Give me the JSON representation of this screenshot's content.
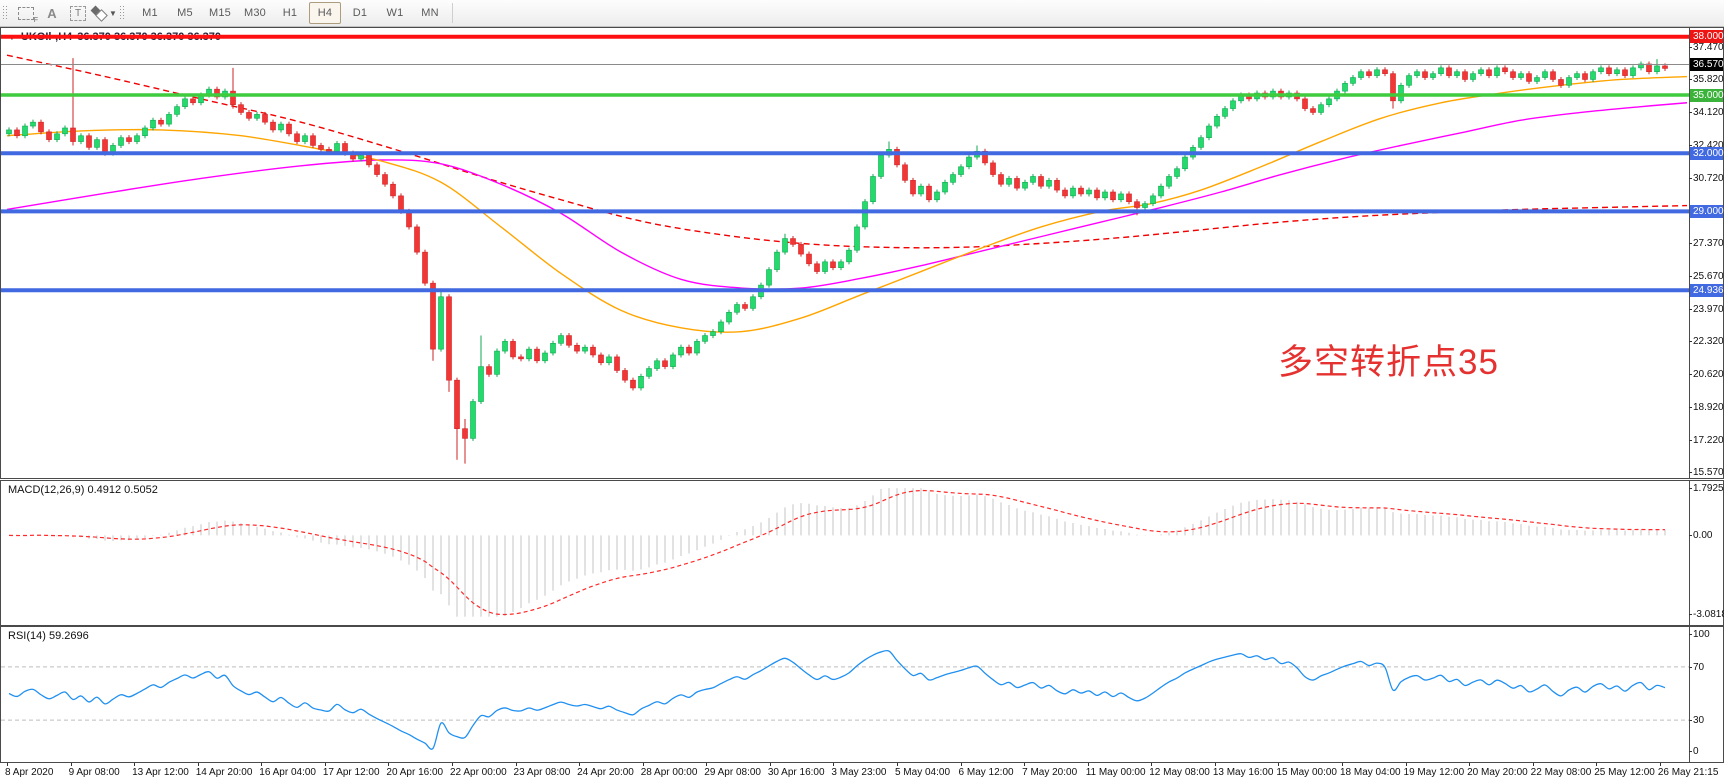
{
  "toolbar": {
    "timeframes": [
      "M1",
      "M5",
      "M15",
      "M30",
      "H1",
      "H4",
      "D1",
      "W1",
      "MN"
    ],
    "active_timeframe": "H4"
  },
  "chart": {
    "title": {
      "symbol_period": "UKOIl-,H4",
      "ohlc": "36.370 36.370 36.370 36.370"
    },
    "annotation": {
      "text": "多空转折点35",
      "color": "#e5312f"
    },
    "price_axis": {
      "ticks": [
        "37.470",
        "35.820",
        "34.120",
        "32.420",
        "30.720",
        "27.370",
        "25.670",
        "23.970",
        "22.320",
        "20.620",
        "18.920",
        "17.220",
        "15.570"
      ],
      "tick_values": [
        37.47,
        35.82,
        34.12,
        32.42,
        30.72,
        27.37,
        25.67,
        23.97,
        22.32,
        20.62,
        18.92,
        17.22,
        15.57
      ],
      "badges": [
        {
          "label": "38.000",
          "price": 38.0,
          "bg": "#ee1414"
        },
        {
          "label": "36.570",
          "price": 36.57,
          "bg": "#000000"
        },
        {
          "label": "35.000",
          "price": 35.0,
          "bg": "#3bb33b"
        },
        {
          "label": "32.000",
          "price": 32.0,
          "bg": "#4169e1"
        },
        {
          "label": "29.000",
          "price": 29.0,
          "bg": "#4169e1"
        },
        {
          "label": "24.936",
          "price": 24.936,
          "bg": "#4169e1"
        }
      ]
    },
    "levels": [
      {
        "price": 35.0,
        "color": "#3ecc3e",
        "w": 3.5
      },
      {
        "price": 32.0,
        "color": "#4169e1",
        "w": 4
      },
      {
        "price": 29.0,
        "color": "#4169e1",
        "w": 4
      },
      {
        "price": 24.936,
        "color": "#4169e1",
        "w": 4
      },
      {
        "price": 36.57,
        "color": "#8a8a8a",
        "w": 1
      },
      {
        "price": 38.0,
        "color": "#ff1010",
        "w": 4
      }
    ],
    "candles": {
      "first_open": 33.0,
      "closes": [
        33.2,
        32.9,
        33.4,
        33.6,
        33.1,
        32.7,
        33.0,
        33.3,
        32.6,
        32.9,
        32.3,
        32.7,
        32.0,
        32.4,
        32.8,
        32.6,
        32.9,
        33.3,
        33.7,
        33.5,
        34.0,
        34.4,
        34.8,
        34.6,
        35.0,
        35.3,
        34.9,
        35.2,
        34.5,
        34.1,
        33.8,
        34.0,
        33.6,
        33.2,
        33.5,
        33.0,
        32.6,
        32.9,
        32.4,
        32.2,
        32.1,
        32.5,
        32.0,
        31.7,
        31.9,
        31.4,
        30.9,
        30.4,
        29.8,
        29.0,
        28.2,
        26.9,
        25.3,
        21.9,
        24.6,
        20.3,
        17.8,
        17.3,
        19.2,
        21.0,
        20.6,
        21.8,
        22.3,
        21.5,
        21.4,
        21.9,
        21.3,
        21.7,
        22.2,
        22.6,
        22.1,
        21.8,
        22.0,
        21.6,
        21.2,
        21.5,
        20.8,
        20.3,
        19.9,
        20.5,
        20.9,
        21.3,
        21.0,
        21.6,
        22.0,
        21.7,
        22.3,
        22.6,
        22.8,
        23.3,
        23.8,
        24.2,
        24.0,
        24.6,
        25.2,
        26.0,
        26.9,
        27.6,
        27.3,
        26.8,
        26.3,
        25.9,
        26.4,
        26.1,
        26.4,
        27.0,
        28.2,
        29.5,
        30.8,
        31.9,
        32.2,
        31.4,
        30.6,
        29.9,
        30.3,
        29.6,
        30.0,
        30.5,
        30.9,
        31.3,
        31.8,
        32.1,
        31.5,
        30.9,
        30.4,
        30.7,
        30.2,
        30.5,
        30.8,
        30.3,
        30.6,
        30.1,
        29.8,
        30.2,
        29.9,
        30.1,
        29.7,
        30.0,
        29.6,
        29.9,
        29.5,
        29.2,
        29.4,
        29.8,
        30.3,
        30.8,
        31.2,
        31.8,
        32.3,
        32.8,
        33.4,
        33.9,
        34.3,
        34.7,
        35.0,
        34.8,
        35.1,
        34.9,
        35.2,
        34.9,
        35.1,
        34.8,
        34.3,
        34.1,
        34.5,
        34.8,
        35.2,
        35.6,
        35.9,
        36.2,
        36.0,
        36.3,
        36.1,
        34.7,
        35.5,
        36.0,
        36.2,
        35.9,
        36.1,
        36.4,
        36.0,
        36.2,
        35.8,
        36.1,
        36.3,
        36.0,
        36.4,
        36.2,
        35.9,
        36.1,
        35.7,
        35.9,
        36.2,
        35.8,
        35.5,
        35.9,
        36.1,
        35.8,
        36.2,
        36.4,
        36.1,
        36.3,
        36.0,
        36.4,
        36.6,
        36.2,
        36.5,
        36.37
      ],
      "wick_overrides": {
        "8": [
          36.9,
          32.4
        ],
        "28": [
          36.4,
          34.3
        ],
        "53": [
          null,
          21.3
        ],
        "54": [
          24.9,
          null
        ],
        "55": [
          null,
          19.7
        ],
        "56": [
          null,
          16.2
        ],
        "57": [
          18.3,
          16.0
        ],
        "59": [
          22.6,
          null
        ],
        "97": [
          27.85,
          null
        ],
        "110": [
          32.6,
          null
        ],
        "121": [
          32.4,
          null
        ],
        "141": [
          null,
          28.8
        ],
        "173": [
          null,
          34.3
        ],
        "206": [
          36.85,
          null
        ]
      },
      "up_color": "#22db6a",
      "up_stroke": "#0fa850",
      "down_color": "#f23636",
      "down_stroke": "#cf2424"
    },
    "moving_averages": {
      "red_dashed": {
        "color": "#f00000",
        "points": [
          [
            6,
            37.05
          ],
          [
            100,
            36.0
          ],
          [
            200,
            34.8
          ],
          [
            300,
            33.6
          ],
          [
            400,
            32.1
          ],
          [
            480,
            30.8
          ],
          [
            560,
            29.6
          ],
          [
            640,
            28.5
          ],
          [
            720,
            27.8
          ],
          [
            800,
            27.35
          ],
          [
            880,
            27.15
          ],
          [
            960,
            27.15
          ],
          [
            1040,
            27.35
          ],
          [
            1120,
            27.65
          ],
          [
            1200,
            28.05
          ],
          [
            1280,
            28.45
          ],
          [
            1360,
            28.75
          ],
          [
            1440,
            28.95
          ],
          [
            1520,
            29.1
          ],
          [
            1600,
            29.2
          ],
          [
            1686,
            29.3
          ]
        ]
      },
      "magenta": {
        "color": "#ff00ff",
        "points": [
          [
            6,
            29.1
          ],
          [
            100,
            29.9
          ],
          [
            200,
            30.7
          ],
          [
            300,
            31.35
          ],
          [
            380,
            31.65
          ],
          [
            440,
            31.45
          ],
          [
            500,
            30.4
          ],
          [
            560,
            28.9
          ],
          [
            620,
            26.9
          ],
          [
            680,
            25.5
          ],
          [
            740,
            25.05
          ],
          [
            800,
            25.05
          ],
          [
            860,
            25.55
          ],
          [
            920,
            26.2
          ],
          [
            980,
            26.95
          ],
          [
            1040,
            27.7
          ],
          [
            1100,
            28.45
          ],
          [
            1160,
            29.2
          ],
          [
            1220,
            30.0
          ],
          [
            1280,
            30.9
          ],
          [
            1340,
            31.7
          ],
          [
            1400,
            32.4
          ],
          [
            1460,
            33.05
          ],
          [
            1520,
            33.7
          ],
          [
            1580,
            34.1
          ],
          [
            1640,
            34.4
          ],
          [
            1686,
            34.6
          ]
        ]
      },
      "orange": {
        "color": "#ffa500",
        "points": [
          [
            6,
            32.9
          ],
          [
            80,
            33.15
          ],
          [
            160,
            33.2
          ],
          [
            240,
            32.9
          ],
          [
            320,
            32.2
          ],
          [
            380,
            31.6
          ],
          [
            440,
            30.5
          ],
          [
            500,
            28.2
          ],
          [
            560,
            25.8
          ],
          [
            620,
            23.9
          ],
          [
            680,
            23.0
          ],
          [
            740,
            22.8
          ],
          [
            800,
            23.5
          ],
          [
            860,
            24.7
          ],
          [
            920,
            25.9
          ],
          [
            980,
            27.1
          ],
          [
            1040,
            28.2
          ],
          [
            1100,
            29.0
          ],
          [
            1150,
            29.4
          ],
          [
            1200,
            30.1
          ],
          [
            1260,
            31.3
          ],
          [
            1320,
            32.6
          ],
          [
            1380,
            33.8
          ],
          [
            1440,
            34.6
          ],
          [
            1500,
            35.1
          ],
          [
            1560,
            35.5
          ],
          [
            1620,
            35.8
          ],
          [
            1686,
            35.95
          ]
        ]
      }
    }
  },
  "macd": {
    "label": "MACD(12,26,9)",
    "values": "0.4912 0.5052",
    "axis_labels": [
      "1.7925",
      "0.00",
      "-3.0818"
    ],
    "axis_values": [
      1.7925,
      0.0,
      -3.0818
    ],
    "hist_color": "#c6c6c6",
    "signal_color": "#ff2a2a"
  },
  "rsi": {
    "label": "RSI(14)",
    "value": "59.2696",
    "axis_labels": [
      "100",
      "70",
      "30",
      "0"
    ],
    "axis_values": [
      100,
      70,
      30,
      0
    ],
    "level_lines": [
      70,
      30
    ],
    "line_color": "#2090f0"
  },
  "time_axis": {
    "labels": [
      "8 Apr 2020",
      "9 Apr 08:00",
      "13 Apr 12:00",
      "14 Apr 20:00",
      "16 Apr 04:00",
      "17 Apr 12:00",
      "20 Apr 16:00",
      "22 Apr 00:00",
      "23 Apr 08:00",
      "24 Apr 20:00",
      "28 Apr 00:00",
      "29 Apr 08:00",
      "30 Apr 16:00",
      "3 May 23:00",
      "5 May 04:00",
      "6 May 12:00",
      "7 May 20:00",
      "11 May 00:00",
      "12 May 08:00",
      "13 May 16:00",
      "15 May 00:00",
      "18 May 04:00",
      "19 May 12:00",
      "20 May 20:00",
      "22 May 08:00",
      "25 May 12:00",
      "26 May 21:15"
    ]
  }
}
